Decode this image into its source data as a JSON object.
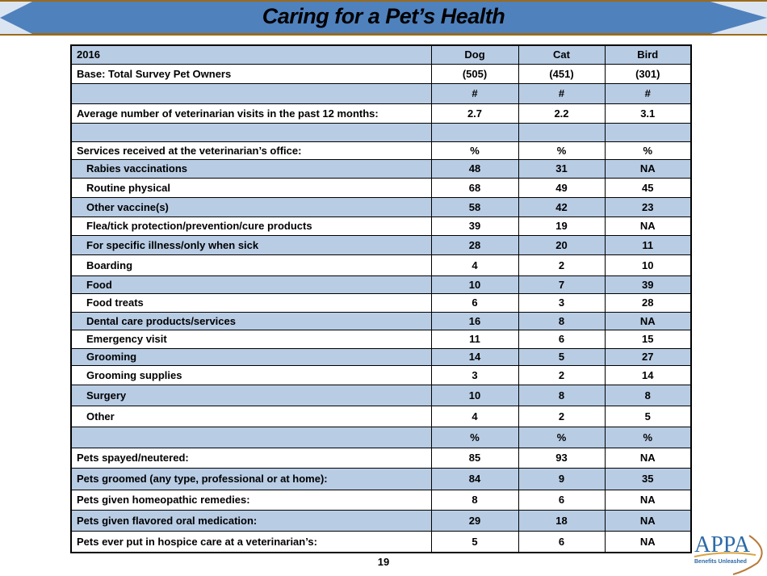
{
  "title": "Caring for a Pet’s Health",
  "table": {
    "columns": [
      "2016",
      "Dog",
      "Cat",
      "Bird"
    ],
    "rows": [
      {
        "label": "Base: Total Survey Pet Owners",
        "values": [
          "(505)",
          "(451)",
          "(301)"
        ],
        "blue": false,
        "indent": false
      },
      {
        "label": "",
        "values": [
          "#",
          "#",
          "#"
        ],
        "blue": true,
        "indent": false
      },
      {
        "label": "Average number of veterinarian visits in the past 12 months:",
        "values": [
          "2.7",
          "2.2",
          "3.1"
        ],
        "blue": false,
        "indent": false
      },
      {
        "label": "",
        "values": [
          "",
          "",
          ""
        ],
        "blue": true,
        "indent": false
      },
      {
        "label": "Services received at the veterinarian’s office:",
        "values": [
          "%",
          "%",
          "%"
        ],
        "blue": false,
        "indent": false
      },
      {
        "label": "Rabies vaccinations",
        "values": [
          "48",
          "31",
          "NA"
        ],
        "blue": true,
        "indent": true
      },
      {
        "label": "Routine physical",
        "values": [
          "68",
          "49",
          "45"
        ],
        "blue": false,
        "indent": true
      },
      {
        "label": "Other vaccine(s)",
        "values": [
          "58",
          "42",
          "23"
        ],
        "blue": true,
        "indent": true
      },
      {
        "label": "Flea/tick protection/prevention/cure products",
        "values": [
          "39",
          "19",
          "NA"
        ],
        "blue": false,
        "indent": true
      },
      {
        "label": "For specific illness/only when sick",
        "values": [
          "28",
          "20",
          "11"
        ],
        "blue": true,
        "indent": true
      },
      {
        "label": "Boarding",
        "values": [
          "4",
          "2",
          "10"
        ],
        "blue": false,
        "indent": true
      },
      {
        "label": "Food",
        "values": [
          "10",
          "7",
          "39"
        ],
        "blue": true,
        "indent": true
      },
      {
        "label": "Food treats",
        "values": [
          "6",
          "3",
          "28"
        ],
        "blue": false,
        "indent": true
      },
      {
        "label": "Dental care products/services",
        "values": [
          "16",
          "8",
          "NA"
        ],
        "blue": true,
        "indent": true
      },
      {
        "label": "Emergency visit",
        "values": [
          "11",
          "6",
          "15"
        ],
        "blue": false,
        "indent": true
      },
      {
        "label": "Grooming",
        "values": [
          "14",
          "5",
          "27"
        ],
        "blue": true,
        "indent": true
      },
      {
        "label": "Grooming supplies",
        "values": [
          "3",
          "2",
          "14"
        ],
        "blue": false,
        "indent": true
      },
      {
        "label": "Surgery",
        "values": [
          "10",
          "8",
          "8"
        ],
        "blue": true,
        "indent": true
      },
      {
        "label": "Other",
        "values": [
          "4",
          "2",
          "5"
        ],
        "blue": false,
        "indent": true
      },
      {
        "label": "",
        "values": [
          "%",
          "%",
          "%"
        ],
        "blue": true,
        "indent": false
      },
      {
        "label": "Pets spayed/neutered:",
        "values": [
          "85",
          "93",
          "NA"
        ],
        "blue": false,
        "indent": false
      },
      {
        "label": "Pets groomed (any type, professional or at home):",
        "values": [
          "84",
          "9",
          "35"
        ],
        "blue": true,
        "indent": false
      },
      {
        "label": "Pets given homeopathic remedies:",
        "values": [
          "8",
          "6",
          "NA"
        ],
        "blue": false,
        "indent": false
      },
      {
        "label": "Pets given flavored oral medication:",
        "values": [
          "29",
          "18",
          "NA"
        ],
        "blue": true,
        "indent": false
      },
      {
        "label": "Pets ever put in hospice care at a veterinarian’s:",
        "values": [
          "5",
          "6",
          "NA"
        ],
        "blue": false,
        "indent": false
      }
    ]
  },
  "page_number": "19",
  "logo": {
    "text": "APPA",
    "tagline": "Benefits Unleashed"
  },
  "colors": {
    "banner": "#4f81bd",
    "row_blue": "#b8cce4",
    "banner_border": "#9c6a1a"
  }
}
